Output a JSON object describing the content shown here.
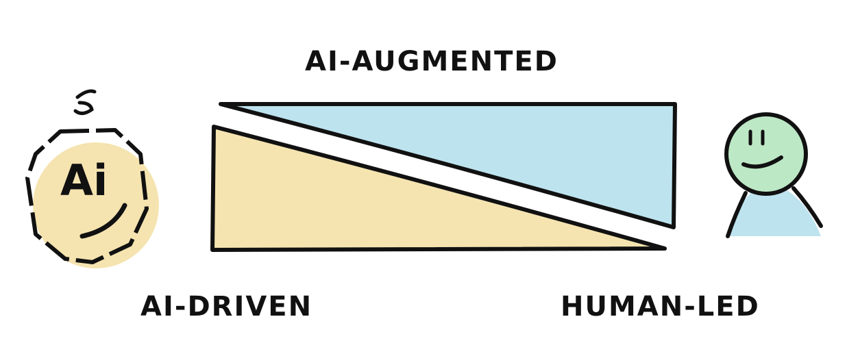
{
  "labels": {
    "top": "Ai-Augmented",
    "left": "Ai-Driven",
    "right": "Human-Led"
  },
  "ai_badge": {
    "text": "Ai",
    "icon": "ai-robot-face-icon"
  },
  "human": {
    "icon": "smiling-person-icon"
  },
  "colors": {
    "ai_region": "#f5e4b0",
    "human_region": "#bde3ee",
    "human_head": "#bde8c6",
    "ink": "#111111"
  }
}
